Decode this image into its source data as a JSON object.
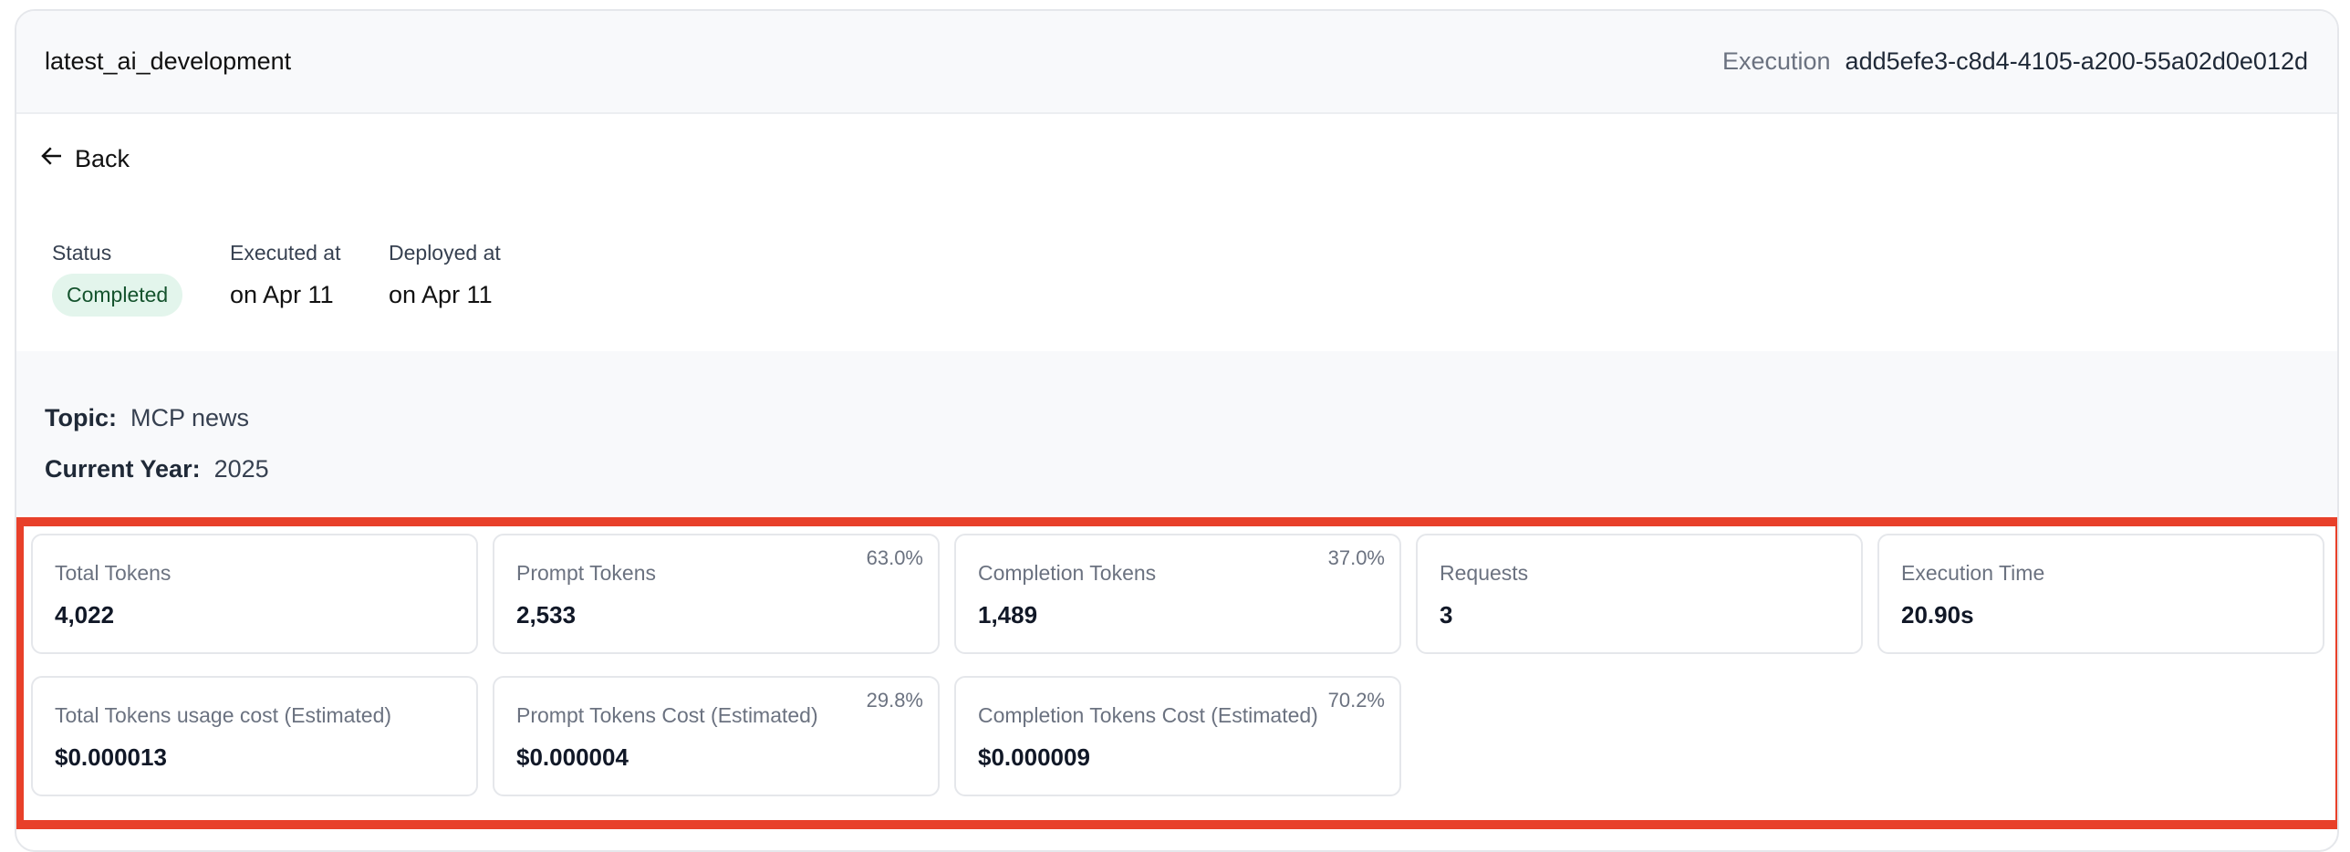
{
  "header": {
    "title": "latest_ai_development",
    "execution_label": "Execution",
    "execution_id": "add5efe3-c8d4-4105-a200-55a02d0e012d"
  },
  "back_label": "Back",
  "meta": {
    "status_label": "Status",
    "status_value": "Completed",
    "status_color": "#e3f5ec",
    "executed_label": "Executed at",
    "executed_value": "on Apr 11",
    "deployed_label": "Deployed at",
    "deployed_value": "on Apr 11"
  },
  "params": [
    {
      "key": "Topic",
      "value": "MCP news"
    },
    {
      "key": "Current Year",
      "value": "2025"
    }
  ],
  "highlight_color": "#e8402a",
  "stats": [
    {
      "label": "Total Tokens",
      "value": "4,022",
      "pct": ""
    },
    {
      "label": "Prompt Tokens",
      "value": "2,533",
      "pct": "63.0%"
    },
    {
      "label": "Completion Tokens",
      "value": "1,489",
      "pct": "37.0%"
    },
    {
      "label": "Requests",
      "value": "3",
      "pct": ""
    },
    {
      "label": "Execution Time",
      "value": "20.90s",
      "pct": ""
    },
    {
      "label": "Total Tokens usage cost (Estimated)",
      "value": "$0.000013",
      "pct": ""
    },
    {
      "label": "Prompt Tokens Cost (Estimated)",
      "value": "$0.000004",
      "pct": "29.8%"
    },
    {
      "label": "Completion Tokens Cost (Estimated)",
      "value": "$0.000009",
      "pct": "70.2%"
    }
  ]
}
